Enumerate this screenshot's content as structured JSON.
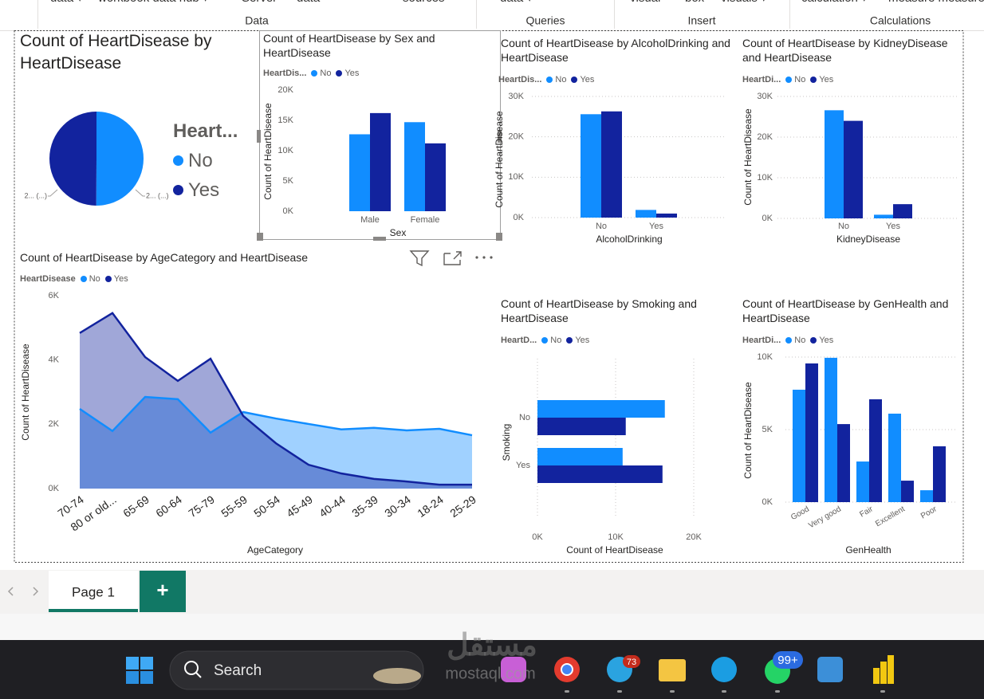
{
  "ribbon": {
    "top_items": [
      "data ▾",
      "workbook data hub ▾",
      "Server",
      "data",
      "sources",
      "data ▾",
      "visual",
      "box",
      "visuals ▾",
      "calculation ▾",
      "measure measure"
    ],
    "groups": [
      "Data",
      "Queries",
      "Insert",
      "Calculations"
    ]
  },
  "chart_data": [
    {
      "type": "pie",
      "title": "Count of HeartDisease by HeartDisease",
      "legend_title": "Heart...",
      "categories": [
        "No",
        "Yes"
      ],
      "colors": [
        "#118dff",
        "#12239e"
      ],
      "values": [
        27400,
        27300
      ],
      "value_labels": [
        "2... (...)",
        "2... (...)"
      ]
    },
    {
      "type": "bar",
      "title": "Count of HeartDisease by Sex and HeartDisease",
      "legend_title": "HeartDis...",
      "x_label": "Sex",
      "y_label": "Count of HeartDisease",
      "categories": [
        "Male",
        "Female"
      ],
      "series": [
        {
          "name": "No",
          "color": "#118dff",
          "values": [
            12700,
            14700
          ]
        },
        {
          "name": "Yes",
          "color": "#12239e",
          "values": [
            16200,
            11200
          ]
        }
      ],
      "ylim": [
        0,
        20000
      ],
      "yticks": [
        {
          "value": 0,
          "label": "0K"
        },
        {
          "value": 5000,
          "label": "5K"
        },
        {
          "value": 10000,
          "label": "10K"
        },
        {
          "value": 15000,
          "label": "15K"
        },
        {
          "value": 20000,
          "label": "20K"
        }
      ],
      "grid": false
    },
    {
      "type": "bar",
      "title": "Count of HeartDisease by AlcoholDrinking and HeartDisease",
      "legend_title": "HeartDis...",
      "x_label": "AlcoholDrinking",
      "y_label": "Count of HeartDisease",
      "categories": [
        "No",
        "Yes"
      ],
      "series": [
        {
          "name": "No",
          "color": "#118dff",
          "values": [
            25600,
            1900
          ]
        },
        {
          "name": "Yes",
          "color": "#12239e",
          "values": [
            26300,
            1000
          ]
        }
      ],
      "ylim": [
        0,
        30000
      ],
      "yticks": [
        {
          "value": 0,
          "label": "0K"
        },
        {
          "value": 10000,
          "label": "10K"
        },
        {
          "value": 20000,
          "label": "20K"
        },
        {
          "value": 30000,
          "label": "30K"
        }
      ],
      "grid": true
    },
    {
      "type": "bar",
      "title": "Count of HeartDisease by KidneyDisease and HeartDisease",
      "legend_title": "HeartDi...",
      "x_label": "KidneyDisease",
      "y_label": "Count of HeartDisease",
      "categories": [
        "No",
        "Yes"
      ],
      "series": [
        {
          "name": "No",
          "color": "#118dff",
          "values": [
            26600,
            900
          ]
        },
        {
          "name": "Yes",
          "color": "#12239e",
          "values": [
            24000,
            3500
          ]
        }
      ],
      "ylim": [
        0,
        30000
      ],
      "yticks": [
        {
          "value": 0,
          "label": "0K"
        },
        {
          "value": 10000,
          "label": "10K"
        },
        {
          "value": 20000,
          "label": "20K"
        },
        {
          "value": 30000,
          "label": "30K"
        }
      ],
      "grid": true
    },
    {
      "type": "area",
      "title": "Count of HeartDisease by AgeCategory and HeartDisease",
      "legend_title": "HeartDisease",
      "x_label": "AgeCategory",
      "y_label": "Count of HeartDisease",
      "categories": [
        "70-74",
        "80 or old...",
        "65-69",
        "60-64",
        "75-79",
        "55-59",
        "50-54",
        "45-49",
        "40-44",
        "35-39",
        "30-34",
        "18-24",
        "25-29"
      ],
      "series": [
        {
          "name": "No",
          "color": "#118dff",
          "values": [
            2480,
            1790,
            2850,
            2780,
            1740,
            2380,
            2180,
            2010,
            1840,
            1890,
            1810,
            1860,
            1660
          ]
        },
        {
          "name": "Yes",
          "color": "#12239e",
          "values": [
            4840,
            5460,
            4090,
            3350,
            4040,
            2260,
            1410,
            740,
            470,
            300,
            220,
            120,
            120
          ]
        }
      ],
      "ylim": [
        0,
        6000
      ],
      "yticks": [
        {
          "value": 0,
          "label": "0K"
        },
        {
          "value": 2000,
          "label": "2K"
        },
        {
          "value": 4000,
          "label": "4K"
        },
        {
          "value": 6000,
          "label": "6K"
        }
      ],
      "grid": false
    },
    {
      "type": "barh",
      "title": "Count of HeartDisease by Smoking and HeartDisease",
      "legend_title": "HeartD...",
      "x_label": "Count of HeartDisease",
      "y_label": "Smoking",
      "categories": [
        "No",
        "Yes"
      ],
      "series": [
        {
          "name": "No",
          "color": "#118dff",
          "values": [
            16300,
            10900
          ]
        },
        {
          "name": "Yes",
          "color": "#12239e",
          "values": [
            11300,
            16000
          ]
        }
      ],
      "xlim": [
        0,
        20000
      ],
      "xticks": [
        {
          "value": 0,
          "label": "0K"
        },
        {
          "value": 10000,
          "label": "10K"
        },
        {
          "value": 20000,
          "label": "20K"
        }
      ],
      "grid": true
    },
    {
      "type": "bar",
      "title": "Count of HeartDisease by GenHealth and HeartDisease",
      "legend_title": "HeartDi...",
      "x_label": "GenHealth",
      "y_label": "Count of HeartDisease",
      "categories": [
        "Good",
        "Very good",
        "Fair",
        "Excellent",
        "Poor"
      ],
      "series": [
        {
          "name": "No",
          "color": "#118dff",
          "values": [
            7750,
            9950,
            2800,
            6100,
            820
          ]
        },
        {
          "name": "Yes",
          "color": "#12239e",
          "values": [
            9560,
            5380,
            7090,
            1480,
            3850
          ]
        }
      ],
      "ylim": [
        0,
        10000
      ],
      "yticks": [
        {
          "value": 0,
          "label": "0K"
        },
        {
          "value": 5000,
          "label": "5K"
        },
        {
          "value": 10000,
          "label": "10K"
        }
      ],
      "grid": true
    }
  ],
  "tabs": {
    "pages": [
      "Page 1"
    ],
    "add": "+"
  },
  "taskbar": {
    "search": "Search",
    "badges": [
      "73",
      "99+"
    ]
  },
  "watermark": {
    "arabic": "مستقل",
    "latin": "mostaql.com"
  }
}
